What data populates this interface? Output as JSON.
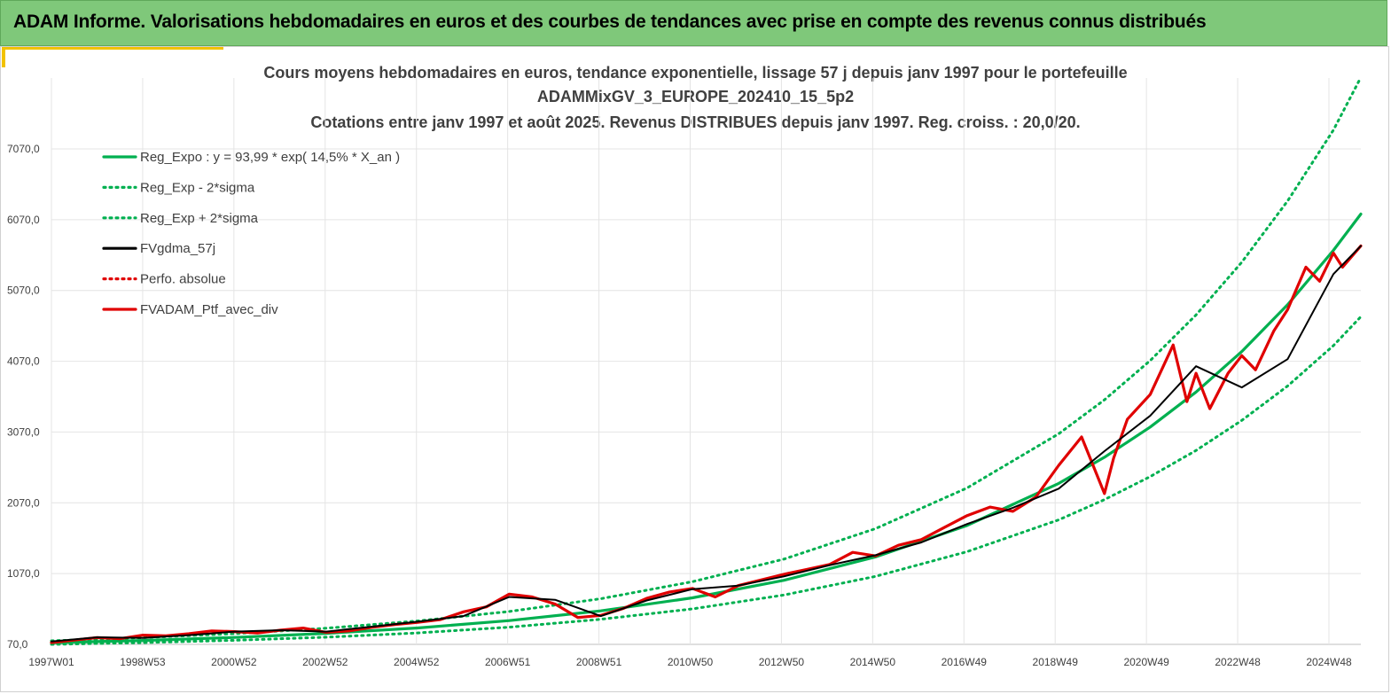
{
  "header": {
    "title": "ADAM Informe. Valorisations hebdomadaires en euros et des courbes de tendances avec prise en compte des revenus connus distribués"
  },
  "chart_data": {
    "type": "line",
    "title_lines": [
      "Cours moyens hebdomadaires  en euros, tendance exponentielle, lissage 57 j depuis janv 1997 pour le portefeuille",
      "ADAMMixGV_3_EUROPE_202410_15_5p2",
      "Cotations  entre janv 1997 et août 2025. Revenus DISTRIBUES depuis janv 1997. Reg. croiss. : 20,0/20."
    ],
    "x_ticks": [
      "1997W01",
      "1998W53",
      "2000W52",
      "2002W52",
      "2004W52",
      "2006W51",
      "2008W51",
      "2010W50",
      "2012W50",
      "2014W50",
      "2016W49",
      "2018W49",
      "2020W49",
      "2022W48",
      "2024W48"
    ],
    "y_ticks": [
      "70,0",
      "1070,0",
      "2070,0",
      "3070,0",
      "4070,0",
      "5070,0",
      "6070,0",
      "7070,0"
    ],
    "ylim": [
      70,
      7070
    ],
    "x_year_range": [
      1997.0,
      2025.6
    ],
    "grid": true,
    "legend_position": "top-left",
    "series": [
      {
        "name": "Reg_Expo : y = 93,99 * exp( 14,5% *  X_an )",
        "color": "#00b050",
        "style": "solid",
        "x": [
          1997,
          1999,
          2001,
          2003,
          2005,
          2007,
          2009,
          2011,
          2013,
          2015,
          2017,
          2019,
          2020,
          2021,
          2022,
          2023,
          2024,
          2025,
          2025.6
        ],
        "values": [
          94,
          125,
          168,
          225,
          302,
          405,
          543,
          728,
          975,
          1306,
          1750,
          2344,
          2713,
          3141,
          3635,
          4207,
          4869,
          5636,
          6150
        ]
      },
      {
        "name": "Reg_Exp - 2*sigma",
        "color": "#00b050",
        "style": "dotted",
        "x": [
          1997,
          1999,
          2001,
          2003,
          2005,
          2007,
          2009,
          2011,
          2013,
          2015,
          2017,
          2019,
          2020,
          2021,
          2022,
          2023,
          2024,
          2025,
          2025.6
        ],
        "values": [
          70,
          95,
          128,
          172,
          232,
          313,
          424,
          571,
          768,
          1030,
          1380,
          1830,
          2115,
          2440,
          2810,
          3235,
          3720,
          4290,
          4700
        ]
      },
      {
        "name": "Reg_Exp + 2*sigma",
        "color": "#00b050",
        "style": "dotted",
        "x": [
          1997,
          1999,
          2001,
          2003,
          2005,
          2007,
          2009,
          2011,
          2013,
          2015,
          2017,
          2019,
          2020,
          2021,
          2022,
          2023,
          2024,
          2025,
          2025.6
        ],
        "values": [
          120,
          165,
          222,
          298,
          400,
          535,
          715,
          955,
          1275,
          1705,
          2280,
          3045,
          3525,
          4080,
          4725,
          5470,
          6335,
          7335,
          8080
        ]
      },
      {
        "name": "FVgdma_57j",
        "color": "#000000",
        "style": "solid",
        "x": [
          1997,
          1998,
          1999,
          2000,
          2001,
          2002,
          2003,
          2004,
          2005,
          2006,
          2007,
          2008,
          2009,
          2010,
          2011,
          2012,
          2013,
          2014,
          2015,
          2016,
          2017,
          2018,
          2019,
          2020,
          2021,
          2022,
          2023,
          2024,
          2025,
          2025.6
        ],
        "values": [
          110,
          170,
          160,
          200,
          250,
          270,
          250,
          320,
          390,
          470,
          740,
          700,
          470,
          690,
          850,
          900,
          1030,
          1190,
          1330,
          1510,
          1770,
          2000,
          2270,
          2800,
          3300,
          4000,
          3700,
          4100,
          5300,
          5700
        ]
      },
      {
        "name": "Perfo. absolue",
        "color": "#e00000",
        "style": "dotted",
        "x": [],
        "values": []
      },
      {
        "name": "FVADAM_Ptf_avec_div",
        "color": "#e00000",
        "style": "solid",
        "x": [
          1997,
          1997.5,
          1998,
          1998.5,
          1999,
          1999.5,
          2000,
          2000.5,
          2001,
          2001.5,
          2002,
          2002.5,
          2003,
          2003.5,
          2004,
          2004.5,
          2005,
          2005.5,
          2006,
          2006.5,
          2007,
          2007.5,
          2008,
          2008.5,
          2009,
          2009.5,
          2010,
          2010.5,
          2011,
          2011.5,
          2012,
          2012.5,
          2013,
          2013.5,
          2014,
          2014.5,
          2015,
          2015.5,
          2016,
          2016.5,
          2017,
          2017.5,
          2018,
          2018.5,
          2019,
          2019.5,
          2020,
          2020.2,
          2020.5,
          2021,
          2021.5,
          2021.8,
          2022,
          2022.3,
          2022.7,
          2023,
          2023.3,
          2023.7,
          2024,
          2024.4,
          2024.7,
          2025,
          2025.2,
          2025.6
        ],
        "values": [
          95,
          130,
          165,
          150,
          200,
          190,
          220,
          260,
          250,
          230,
          270,
          300,
          240,
          260,
          310,
          350,
          380,
          420,
          530,
          600,
          780,
          740,
          640,
          450,
          480,
          580,
          720,
          810,
          860,
          740,
          900,
          980,
          1060,
          1130,
          1200,
          1370,
          1320,
          1470,
          1550,
          1720,
          1890,
          2010,
          1950,
          2150,
          2600,
          3000,
          2200,
          2700,
          3250,
          3600,
          4300,
          3500,
          3900,
          3400,
          3900,
          4150,
          3950,
          4500,
          4800,
          5400,
          5200,
          5600,
          5400,
          5700
        ]
      }
    ]
  }
}
